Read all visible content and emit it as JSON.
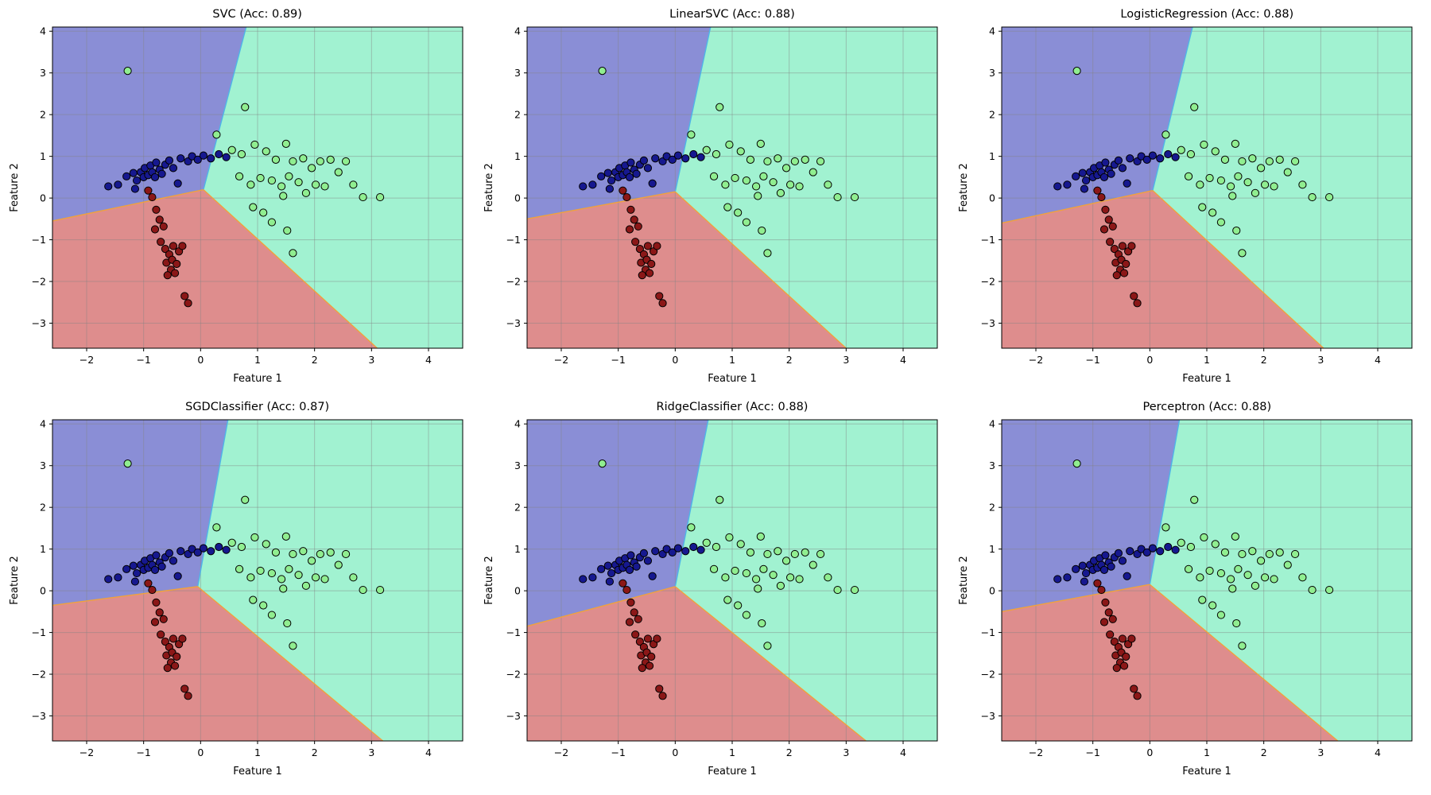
{
  "figure": {
    "description": "Comparison of linear classifier decision boundaries on a 2D dataset"
  },
  "chart_data": [
    {
      "type": "scatter",
      "title": "SVC (Acc: 0.89)",
      "classifier": "SVC",
      "accuracy": 0.89,
      "xlabel": "Feature 1",
      "ylabel": "Feature 2",
      "xlim": [
        -2.6,
        4.6
      ],
      "ylim": [
        -3.6,
        4.1
      ],
      "xticks": [
        -2,
        -1,
        0,
        1,
        2,
        3,
        4
      ],
      "yticks": [
        -3,
        -2,
        -1,
        0,
        1,
        2,
        3,
        4
      ],
      "grid": true,
      "regions": {
        "center": [
          0.05,
          0.2
        ],
        "top_x": 0.8,
        "left_y": -0.55,
        "bottom_x": 3.1
      }
    },
    {
      "type": "scatter",
      "title": "LinearSVC (Acc: 0.88)",
      "classifier": "LinearSVC",
      "accuracy": 0.88,
      "xlabel": "Feature 1",
      "ylabel": "Feature 2",
      "xlim": [
        -2.6,
        4.6
      ],
      "ylim": [
        -3.6,
        4.1
      ],
      "xticks": [
        -2,
        -1,
        0,
        1,
        2,
        3,
        4
      ],
      "yticks": [
        -3,
        -2,
        -1,
        0,
        1,
        2,
        3,
        4
      ],
      "grid": true,
      "regions": {
        "center": [
          0.0,
          0.15
        ],
        "top_x": 0.62,
        "left_y": -0.5,
        "bottom_x": 3.0
      }
    },
    {
      "type": "scatter",
      "title": "LogisticRegression (Acc: 0.88)",
      "classifier": "LogisticRegression",
      "accuracy": 0.88,
      "xlabel": "Feature 1",
      "ylabel": "Feature 2",
      "xlim": [
        -2.6,
        4.6
      ],
      "ylim": [
        -3.6,
        4.1
      ],
      "xticks": [
        -2,
        -1,
        0,
        1,
        2,
        3,
        4
      ],
      "yticks": [
        -3,
        -2,
        -1,
        0,
        1,
        2,
        3,
        4
      ],
      "grid": true,
      "regions": {
        "center": [
          0.05,
          0.18
        ],
        "top_x": 0.75,
        "left_y": -0.6,
        "bottom_x": 3.05
      }
    },
    {
      "type": "scatter",
      "title": "SGDClassifier (Acc: 0.87)",
      "classifier": "SGDClassifier",
      "accuracy": 0.87,
      "xlabel": "Feature 1",
      "ylabel": "Feature 2",
      "xlim": [
        -2.6,
        4.6
      ],
      "ylim": [
        -3.6,
        4.1
      ],
      "xticks": [
        -2,
        -1,
        0,
        1,
        2,
        3,
        4
      ],
      "yticks": [
        -3,
        -2,
        -1,
        0,
        1,
        2,
        3,
        4
      ],
      "grid": true,
      "regions": {
        "center": [
          -0.05,
          0.1
        ],
        "top_x": 0.48,
        "left_y": -0.35,
        "bottom_x": 3.2
      }
    },
    {
      "type": "scatter",
      "title": "RidgeClassifier (Acc: 0.88)",
      "classifier": "RidgeClassifier",
      "accuracy": 0.88,
      "xlabel": "Feature 1",
      "ylabel": "Feature 2",
      "xlim": [
        -2.6,
        4.6
      ],
      "ylim": [
        -3.6,
        4.1
      ],
      "xticks": [
        -2,
        -1,
        0,
        1,
        2,
        3,
        4
      ],
      "yticks": [
        -3,
        -2,
        -1,
        0,
        1,
        2,
        3,
        4
      ],
      "grid": true,
      "regions": {
        "center": [
          0.0,
          0.1
        ],
        "top_x": 0.58,
        "left_y": -0.85,
        "bottom_x": 3.35
      }
    },
    {
      "type": "scatter",
      "title": "Perceptron (Acc: 0.88)",
      "classifier": "Perceptron",
      "accuracy": 0.88,
      "xlabel": "Feature 1",
      "ylabel": "Feature 2",
      "xlim": [
        -2.6,
        4.6
      ],
      "ylim": [
        -3.6,
        4.1
      ],
      "xticks": [
        -2,
        -1,
        0,
        1,
        2,
        3,
        4
      ],
      "yticks": [
        -3,
        -2,
        -1,
        0,
        1,
        2,
        3,
        4
      ],
      "grid": true,
      "regions": {
        "center": [
          0.0,
          0.15
        ],
        "top_x": 0.52,
        "left_y": -0.5,
        "bottom_x": 3.3
      }
    }
  ],
  "dataset": {
    "region_colors": {
      "blue": "#8a8ed6",
      "green": "#a1f2d1",
      "red": "#de8d8d"
    },
    "boundary_colors": {
      "blue_green": "#4fb5e8",
      "red_edge": "#f0a23c"
    },
    "marker_edge_color": "#000000",
    "classes": [
      {
        "name": "class-0-navy",
        "marker_color": "#16188f",
        "points": [
          [
            -1.62,
            0.28
          ],
          [
            -1.45,
            0.32
          ],
          [
            -1.3,
            0.52
          ],
          [
            -1.18,
            0.6
          ],
          [
            -1.12,
            0.42
          ],
          [
            -1.05,
            0.62
          ],
          [
            -1.0,
            0.5
          ],
          [
            -0.98,
            0.72
          ],
          [
            -0.92,
            0.55
          ],
          [
            -0.88,
            0.78
          ],
          [
            -0.85,
            0.62
          ],
          [
            -0.8,
            0.5
          ],
          [
            -0.78,
            0.85
          ],
          [
            -0.72,
            0.68
          ],
          [
            -0.68,
            0.58
          ],
          [
            -0.62,
            0.8
          ],
          [
            -0.55,
            0.9
          ],
          [
            -0.48,
            0.72
          ],
          [
            -0.35,
            0.95
          ],
          [
            -0.22,
            0.88
          ],
          [
            -0.15,
            1.0
          ],
          [
            -0.05,
            0.92
          ],
          [
            0.05,
            1.02
          ],
          [
            0.18,
            0.95
          ],
          [
            0.32,
            1.05
          ],
          [
            0.45,
            0.98
          ],
          [
            -1.15,
            0.22
          ],
          [
            -0.4,
            0.35
          ]
        ]
      },
      {
        "name": "class-1-darkred",
        "marker_color": "#8b1717",
        "points": [
          [
            -0.92,
            0.18
          ],
          [
            -0.85,
            0.02
          ],
          [
            -0.78,
            -0.28
          ],
          [
            -0.72,
            -0.52
          ],
          [
            -0.8,
            -0.75
          ],
          [
            -0.65,
            -0.68
          ],
          [
            -0.7,
            -1.05
          ],
          [
            -0.62,
            -1.22
          ],
          [
            -0.55,
            -1.35
          ],
          [
            -0.6,
            -1.55
          ],
          [
            -0.5,
            -1.48
          ],
          [
            -0.52,
            -1.72
          ],
          [
            -0.45,
            -1.8
          ],
          [
            -0.58,
            -1.85
          ],
          [
            -0.42,
            -1.58
          ],
          [
            -0.38,
            -1.28
          ],
          [
            -0.32,
            -1.15
          ],
          [
            -0.48,
            -1.15
          ],
          [
            -0.28,
            -2.35
          ],
          [
            -0.22,
            -2.52
          ]
        ]
      },
      {
        "name": "class-2-lightgreen",
        "marker_color": "#90ee90",
        "points": [
          [
            -1.28,
            3.05
          ],
          [
            0.28,
            1.52
          ],
          [
            0.78,
            2.18
          ],
          [
            0.55,
            1.15
          ],
          [
            0.72,
            1.05
          ],
          [
            0.95,
            1.28
          ],
          [
            1.15,
            1.12
          ],
          [
            1.32,
            0.92
          ],
          [
            1.5,
            1.3
          ],
          [
            1.62,
            0.88
          ],
          [
            1.8,
            0.95
          ],
          [
            1.95,
            0.72
          ],
          [
            2.1,
            0.88
          ],
          [
            2.28,
            0.92
          ],
          [
            2.42,
            0.62
          ],
          [
            2.55,
            0.88
          ],
          [
            2.68,
            0.32
          ],
          [
            2.85,
            0.02
          ],
          [
            3.15,
            0.02
          ],
          [
            0.68,
            0.52
          ],
          [
            0.88,
            0.32
          ],
          [
            1.05,
            0.48
          ],
          [
            1.25,
            0.42
          ],
          [
            1.42,
            0.28
          ],
          [
            1.55,
            0.52
          ],
          [
            1.72,
            0.38
          ],
          [
            1.85,
            0.12
          ],
          [
            2.02,
            0.32
          ],
          [
            2.18,
            0.28
          ],
          [
            0.92,
            -0.22
          ],
          [
            1.1,
            -0.35
          ],
          [
            1.25,
            -0.58
          ],
          [
            1.52,
            -0.78
          ],
          [
            1.62,
            -1.32
          ],
          [
            1.45,
            0.05
          ]
        ]
      }
    ]
  }
}
